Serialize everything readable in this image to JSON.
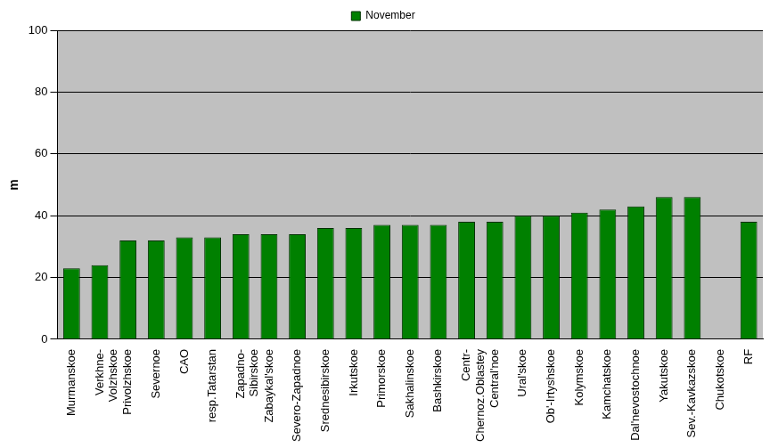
{
  "chart_data": {
    "type": "bar",
    "categories": [
      "Murmanskoe",
      "Verkhne-\nVolzhskoe",
      "Privolzhskoe",
      "Severnoe",
      "CAO",
      "resp.Tatarstan",
      "Zapadno-\nSibirskoe",
      "Zabaykal'skoe",
      "Severo-Zapadnoe",
      "Srednesibirskoe",
      "Irkutskoe",
      "Primorskoe",
      "Sakhalinskoe",
      "Bashkirskoe",
      "Centr-\nChernoz.Oblastey",
      "Central'noe",
      "Ural'skoe",
      "Ob'-Irtyshskoe",
      "Kolymskoe",
      "Kamchatskoe",
      "Dal'nevostochnoe",
      "Yakutskoe",
      "Sev.-Kavkazskoe",
      "Chukotskoe",
      "RF"
    ],
    "series": [
      {
        "name": "November",
        "color": "#008000",
        "values": [
          23,
          24,
          32,
          32,
          33,
          33,
          34,
          34,
          34,
          36,
          36,
          37,
          37,
          37,
          38,
          38,
          40,
          40,
          41,
          42,
          43,
          46,
          46,
          null,
          38
        ]
      }
    ],
    "ylabel": "m",
    "ylim": [
      0,
      100
    ],
    "yticks": [
      0,
      20,
      40,
      60,
      80,
      100
    ],
    "grid": true,
    "legend": "top"
  }
}
